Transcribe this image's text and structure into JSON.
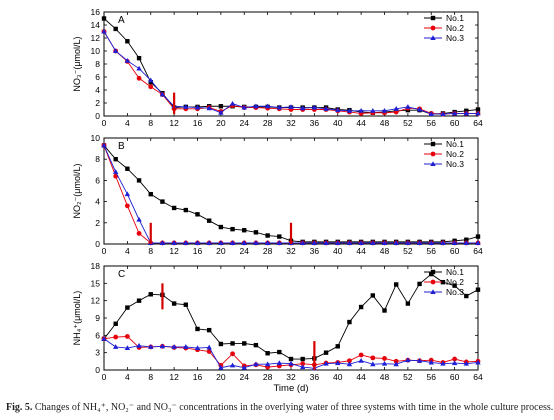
{
  "caption": {
    "label": "Fig. 5.",
    "text": "Changes of NH₄⁺, NO₂⁻ and NO₃⁻ concentrations in the overlying water of three systems with time in the whole culture process."
  },
  "colors": {
    "No.1": "#000000",
    "No.2": "#e8000b",
    "No.3": "#1f1fd6",
    "marker": "#d40000"
  },
  "chart_data": [
    {
      "type": "line",
      "panel": "A",
      "ylabel": "NO₃⁻(μmol/L)",
      "xlabel": "",
      "xlim": [
        0,
        64
      ],
      "ylim": [
        0,
        16
      ],
      "xticks": [
        0,
        4,
        8,
        12,
        16,
        20,
        24,
        28,
        32,
        36,
        40,
        44,
        48,
        52,
        56,
        60,
        64
      ],
      "yticks": [
        0,
        2,
        4,
        6,
        8,
        10,
        12,
        14,
        16
      ],
      "legend": "top-right",
      "markers": [
        {
          "x": 12,
          "y_from": 0.3,
          "y_to": 3.6
        }
      ],
      "series": [
        {
          "name": "No.1",
          "symbol": "square",
          "x": [
            0,
            2,
            4,
            6,
            8,
            10,
            12,
            14,
            16,
            18,
            20,
            22,
            24,
            26,
            28,
            30,
            32,
            34,
            36,
            38,
            40,
            42,
            44,
            46,
            48,
            50,
            52,
            54,
            56,
            58,
            60,
            62,
            64
          ],
          "y": [
            15,
            13.4,
            11.5,
            8.9,
            5.2,
            3.5,
            1.3,
            1.4,
            1.4,
            1.5,
            1.5,
            1.5,
            1.4,
            1.4,
            1.4,
            1.3,
            1.3,
            1.3,
            1.3,
            1.3,
            1.0,
            0.9,
            0.6,
            0.5,
            0.6,
            0.8,
            0.9,
            0.9,
            0.3,
            0.4,
            0.6,
            0.8,
            1.0
          ]
        },
        {
          "name": "No.2",
          "symbol": "circle",
          "x": [
            0,
            2,
            4,
            6,
            8,
            10,
            12,
            14,
            16,
            18,
            20,
            22,
            24,
            26,
            28,
            30,
            32,
            34,
            36,
            38,
            40,
            42,
            44,
            46,
            48,
            50,
            52,
            54,
            56,
            58,
            60,
            62,
            64
          ],
          "y": [
            13,
            10,
            8.4,
            5.8,
            4.5,
            3.3,
            1.1,
            1.1,
            1.1,
            1.3,
            0.7,
            1.6,
            1.3,
            1.3,
            1.2,
            1.1,
            1.0,
            1.0,
            1.0,
            1.0,
            0.8,
            0.6,
            0.4,
            0.5,
            0.5,
            0.6,
            1.2,
            1.1,
            0.4,
            0.3,
            0.4,
            0.4,
            0.4
          ]
        },
        {
          "name": "No.3",
          "symbol": "triangle",
          "x": [
            0,
            2,
            4,
            6,
            8,
            10,
            12,
            14,
            16,
            18,
            20,
            22,
            24,
            26,
            28,
            30,
            32,
            34,
            36,
            38,
            40,
            42,
            44,
            46,
            48,
            50,
            52,
            54,
            56,
            58,
            60,
            62,
            64
          ],
          "y": [
            13,
            10,
            8.5,
            7.3,
            5.5,
            3.3,
            1.5,
            1.4,
            1.3,
            1.2,
            0.5,
            1.9,
            1.3,
            1.5,
            1.5,
            1.3,
            1.4,
            1.2,
            1.3,
            1.1,
            0.9,
            0.8,
            0.8,
            0.8,
            0.8,
            1.1,
            1.4,
            1.0,
            0.3,
            0.3,
            0.4,
            0.4,
            0.4
          ]
        }
      ]
    },
    {
      "type": "line",
      "panel": "B",
      "ylabel": "NO₂⁻(μmol/L)",
      "xlabel": "",
      "xlim": [
        0,
        64
      ],
      "ylim": [
        0,
        10
      ],
      "xticks": [
        0,
        4,
        8,
        12,
        16,
        20,
        24,
        28,
        32,
        36,
        40,
        44,
        48,
        52,
        56,
        60,
        64
      ],
      "yticks": [
        0,
        2,
        4,
        6,
        8,
        10
      ],
      "legend": "top-right",
      "markers": [
        {
          "x": 8,
          "y_from": 0,
          "y_to": 2.0
        },
        {
          "x": 32,
          "y_from": 0,
          "y_to": 2.0
        }
      ],
      "series": [
        {
          "name": "No.1",
          "symbol": "square",
          "x": [
            0,
            2,
            4,
            6,
            8,
            10,
            12,
            14,
            16,
            18,
            20,
            22,
            24,
            26,
            28,
            30,
            32,
            34,
            36,
            38,
            40,
            42,
            44,
            46,
            48,
            50,
            52,
            54,
            56,
            58,
            60,
            62,
            64
          ],
          "y": [
            9.3,
            8.0,
            7.1,
            6.0,
            4.7,
            4.0,
            3.4,
            3.2,
            2.8,
            2.2,
            1.6,
            1.4,
            1.3,
            1.1,
            0.8,
            0.7,
            0.3,
            0.2,
            0.2,
            0.2,
            0.2,
            0.2,
            0.2,
            0.2,
            0.2,
            0.2,
            0.2,
            0.2,
            0.2,
            0.2,
            0.3,
            0.4,
            0.7
          ]
        },
        {
          "name": "No.2",
          "symbol": "circle",
          "x": [
            0,
            2,
            4,
            6,
            8,
            10,
            12,
            14,
            16,
            18,
            20,
            22,
            24,
            26,
            28,
            30,
            32,
            34,
            36,
            38,
            40,
            42,
            44,
            46,
            48,
            50,
            52,
            54,
            56,
            58,
            60,
            62,
            64
          ],
          "y": [
            9.3,
            6.4,
            3.6,
            1.0,
            0.1,
            0.1,
            0.1,
            0.1,
            0.1,
            0.1,
            0.1,
            0.1,
            0.1,
            0.1,
            0.1,
            0.1,
            0.1,
            0.1,
            0.1,
            0.1,
            0.1,
            0.1,
            0.1,
            0.1,
            0.1,
            0.1,
            0.1,
            0.1,
            0.1,
            0.1,
            0.1,
            0.1,
            0.1
          ]
        },
        {
          "name": "No.3",
          "symbol": "triangle",
          "x": [
            0,
            2,
            4,
            6,
            8,
            10,
            12,
            14,
            16,
            18,
            20,
            22,
            24,
            26,
            28,
            30,
            32,
            34,
            36,
            38,
            40,
            42,
            44,
            46,
            48,
            50,
            52,
            54,
            56,
            58,
            60,
            62,
            64
          ],
          "y": [
            9.3,
            6.8,
            4.7,
            2.3,
            0.1,
            0.1,
            0.1,
            0.1,
            0.1,
            0.1,
            0.1,
            0.1,
            0.1,
            0.1,
            0.1,
            0.1,
            0.1,
            0.1,
            0.1,
            0.1,
            0.1,
            0.1,
            0.1,
            0.1,
            0.1,
            0.1,
            0.1,
            0.1,
            0.1,
            0.1,
            0.1,
            0.1,
            0.1
          ]
        }
      ]
    },
    {
      "type": "line",
      "panel": "C",
      "ylabel": "NH₄⁺(μmol/L)",
      "xlabel": "Time (d)",
      "xlim": [
        0,
        64
      ],
      "ylim": [
        0,
        18
      ],
      "xticks": [
        0,
        4,
        8,
        12,
        16,
        20,
        24,
        28,
        32,
        36,
        40,
        44,
        48,
        52,
        56,
        60,
        64
      ],
      "yticks": [
        0,
        3,
        6,
        9,
        12,
        15,
        18
      ],
      "legend": "top-right",
      "markers": [
        {
          "x": 10,
          "y_from": 10.5,
          "y_to": 15.0
        },
        {
          "x": 36,
          "y_from": 0,
          "y_to": 5.0
        }
      ],
      "series": [
        {
          "name": "No.1",
          "symbol": "square",
          "x": [
            0,
            2,
            4,
            6,
            8,
            10,
            12,
            14,
            16,
            18,
            20,
            22,
            24,
            26,
            28,
            30,
            32,
            34,
            36,
            38,
            40,
            42,
            44,
            46,
            48,
            50,
            52,
            54,
            56,
            58,
            60,
            62,
            64
          ],
          "y": [
            5.4,
            8.0,
            10.8,
            12.0,
            13.1,
            13.0,
            11.5,
            11.3,
            7.1,
            6.9,
            4.5,
            4.6,
            4.6,
            4.3,
            2.9,
            3.1,
            1.9,
            1.9,
            2.0,
            3.0,
            4.1,
            8.3,
            10.9,
            12.9,
            10.3,
            14.8,
            11.5,
            14.9,
            16.6,
            15.2,
            14.6,
            12.8,
            13.9
          ]
        },
        {
          "name": "No.2",
          "symbol": "circle",
          "x": [
            0,
            2,
            4,
            6,
            8,
            10,
            12,
            14,
            16,
            18,
            20,
            22,
            24,
            26,
            28,
            30,
            32,
            34,
            36,
            38,
            40,
            42,
            44,
            46,
            48,
            50,
            52,
            54,
            56,
            58,
            60,
            62,
            64
          ],
          "y": [
            5.4,
            5.7,
            5.8,
            3.9,
            4.0,
            4.1,
            3.9,
            3.8,
            3.5,
            3.2,
            0.8,
            2.8,
            0.7,
            0.9,
            0.5,
            0.7,
            0.9,
            1.1,
            0.9,
            1.2,
            1.3,
            1.6,
            2.6,
            2.1,
            2.0,
            1.5,
            1.7,
            1.6,
            1.7,
            1.3,
            1.9,
            1.4,
            1.5
          ]
        },
        {
          "name": "No.3",
          "symbol": "triangle",
          "x": [
            0,
            2,
            4,
            6,
            8,
            10,
            12,
            14,
            16,
            18,
            20,
            22,
            24,
            26,
            28,
            30,
            32,
            34,
            36,
            38,
            40,
            42,
            44,
            46,
            48,
            50,
            52,
            54,
            56,
            58,
            60,
            62,
            64
          ],
          "y": [
            5.4,
            4.0,
            3.8,
            4.2,
            4.0,
            4.1,
            4.0,
            4.0,
            3.8,
            3.9,
            0.4,
            0.8,
            0.4,
            1.0,
            1.0,
            1.2,
            1.1,
            0.5,
            0.3,
            1.1,
            1.2,
            1.0,
            1.6,
            1.0,
            1.1,
            1.0,
            1.7,
            1.6,
            1.3,
            1.1,
            1.2,
            1.1,
            1.3
          ]
        }
      ]
    }
  ]
}
